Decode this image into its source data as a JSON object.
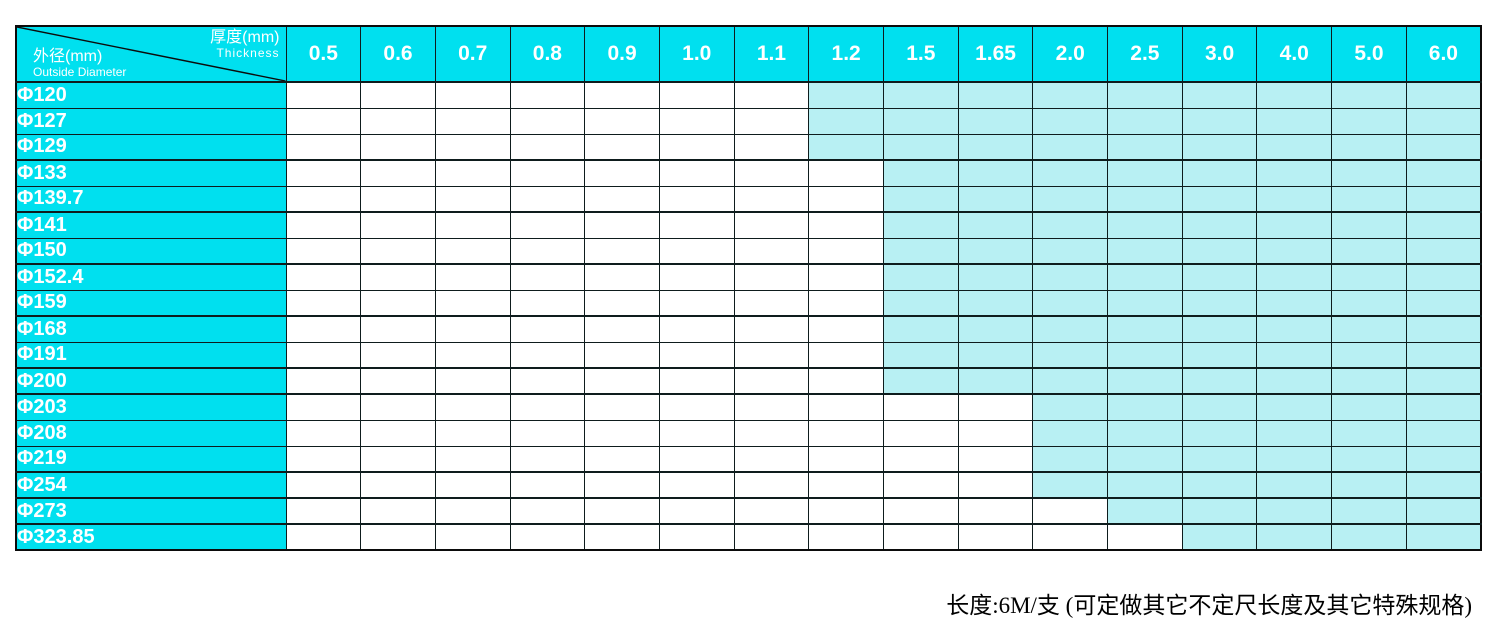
{
  "corner": {
    "thickness_label_cn": "厚度(mm)",
    "thickness_label_en": "Thickness",
    "diameter_label_cn": "外径(mm)",
    "diameter_label_en": "Outside Diameter"
  },
  "columns": [
    "0.5",
    "0.6",
    "0.7",
    "0.8",
    "0.9",
    "1.0",
    "1.1",
    "1.2",
    "1.5",
    "1.65",
    "2.0",
    "2.5",
    "3.0",
    "4.0",
    "5.0",
    "6.0"
  ],
  "rows": [
    {
      "diameter": "Φ120",
      "available_from": "1.2"
    },
    {
      "diameter": "Φ127",
      "available_from": "1.2"
    },
    {
      "diameter": "Φ129",
      "available_from": "1.2"
    },
    {
      "diameter": "Φ133",
      "available_from": "1.5"
    },
    {
      "diameter": "Φ139.7",
      "available_from": "1.5"
    },
    {
      "diameter": "Φ141",
      "available_from": "1.5"
    },
    {
      "diameter": "Φ150",
      "available_from": "1.5"
    },
    {
      "diameter": "Φ152.4",
      "available_from": "1.5"
    },
    {
      "diameter": "Φ159",
      "available_from": "1.5"
    },
    {
      "diameter": "Φ168",
      "available_from": "1.5"
    },
    {
      "diameter": "Φ191",
      "available_from": "1.5"
    },
    {
      "diameter": "Φ200",
      "available_from": "1.5"
    },
    {
      "diameter": "Φ203",
      "available_from": "2.0"
    },
    {
      "diameter": "Φ208",
      "available_from": "2.0"
    },
    {
      "diameter": "Φ219",
      "available_from": "2.0"
    },
    {
      "diameter": "Φ254",
      "available_from": "2.0"
    },
    {
      "diameter": "Φ273",
      "available_from": "2.5"
    },
    {
      "diameter": "Φ323.85",
      "available_from": "3.0"
    }
  ],
  "footnote": "长度:6M/支 (可定做其它不定尺长度及其它特殊规格)",
  "colors": {
    "header_cyan": "#00e0ef",
    "available_cyan": "#b8f0f3",
    "grid": "#0e1c1d"
  }
}
